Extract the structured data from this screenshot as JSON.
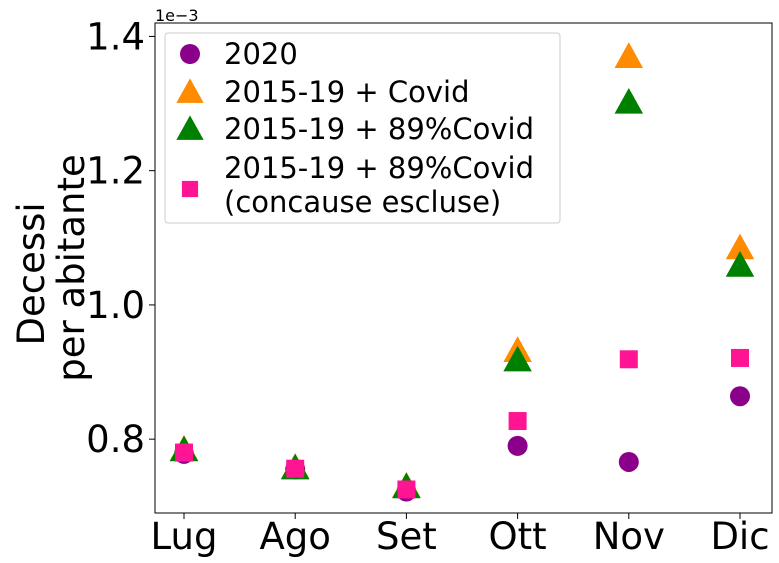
{
  "chart_data": {
    "type": "scatter",
    "title": "",
    "xlabel": "",
    "ylabel_lines": [
      "Decessi",
      "per abitante"
    ],
    "y_offset_label": "1e−3",
    "categories": [
      "Lug",
      "Ago",
      "Set",
      "Ott",
      "Nov",
      "Dic"
    ],
    "ylim": [
      0.69,
      1.42
    ],
    "yticks": [
      0.8,
      1.0,
      1.2,
      1.4
    ],
    "ytick_labels": [
      "0.8",
      "1.0",
      "1.2",
      "1.4"
    ],
    "grid": false,
    "legend_position": "top-left",
    "series": [
      {
        "name": "2020",
        "marker": "circle",
        "color": "#8b008b",
        "values": [
          0.778,
          0.755,
          0.722,
          0.79,
          0.766,
          0.864
        ]
      },
      {
        "name": "2015-19 + Covid",
        "marker": "triangle",
        "color": "#ff8c00",
        "values": [
          0.785,
          0.758,
          0.73,
          0.932,
          1.37,
          1.085
        ]
      },
      {
        "name": "2015-19 + 89%Covid",
        "marker": "triangle",
        "color": "#008000",
        "values": [
          0.784,
          0.757,
          0.729,
          0.918,
          1.302,
          1.059
        ]
      },
      {
        "name": "2015-19 + 89%Covid\n(concause escluse)",
        "name_lines": [
          "2015-19 + 89%Covid",
          "(concause escluse)"
        ],
        "marker": "square",
        "color": "#ff1493",
        "values": [
          0.78,
          0.756,
          0.725,
          0.827,
          0.919,
          0.921
        ]
      }
    ]
  }
}
